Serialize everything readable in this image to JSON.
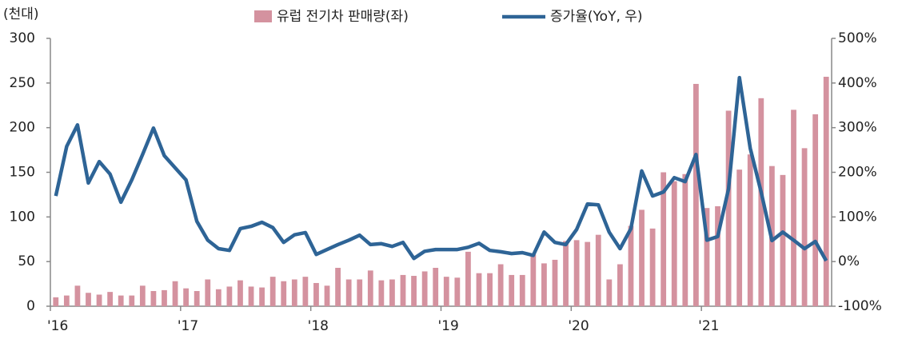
{
  "chart_data": {
    "type": "bar_line",
    "y_label": "(천대)",
    "categories": [
      "'16",
      null,
      null,
      null,
      null,
      null,
      null,
      null,
      null,
      null,
      null,
      null,
      "'17",
      null,
      null,
      null,
      null,
      null,
      null,
      null,
      null,
      null,
      null,
      null,
      "'18",
      null,
      null,
      null,
      null,
      null,
      null,
      null,
      null,
      null,
      null,
      null,
      "'19",
      null,
      null,
      null,
      null,
      null,
      null,
      null,
      null,
      null,
      null,
      null,
      "'20",
      null,
      null,
      null,
      null,
      null,
      null,
      null,
      null,
      null,
      null,
      null,
      "'21",
      null,
      null,
      null,
      null,
      null,
      null,
      null,
      null,
      null,
      null,
      null
    ],
    "series": [
      {
        "name": "유럽 전기차 판매량(좌)",
        "type": "bar",
        "color": "#d4929f",
        "values": [
          10,
          12,
          23,
          15,
          13,
          16,
          12,
          12,
          23,
          17,
          18,
          28,
          20,
          17,
          30,
          19,
          22,
          29,
          22,
          21,
          33,
          28,
          30,
          33,
          26,
          23,
          43,
          30,
          30,
          40,
          29,
          30,
          35,
          34,
          39,
          43,
          33,
          32,
          61,
          37,
          37,
          47,
          35,
          35,
          58,
          48,
          52,
          73,
          74,
          72,
          80,
          30,
          47,
          90,
          108,
          87,
          150,
          140,
          148,
          249,
          110,
          112,
          219,
          153,
          170,
          233,
          157,
          147,
          220,
          177,
          215,
          257
        ]
      },
      {
        "name": "증가율(YoY, 우)",
        "type": "line",
        "axis": "y2",
        "color": "#2e6496",
        "values": [
          147,
          258,
          306,
          176,
          224,
          196,
          133,
          183,
          240,
          299,
          237,
          210,
          183,
          90,
          48,
          29,
          25,
          74,
          79,
          88,
          76,
          43,
          60,
          65,
          16,
          27,
          38,
          48,
          59,
          38,
          40,
          34,
          43,
          7,
          23,
          27,
          27,
          27,
          32,
          41,
          25,
          22,
          18,
          20,
          14,
          66,
          43,
          38,
          72,
          129,
          127,
          66,
          29,
          74,
          203,
          147,
          156,
          188,
          179,
          240,
          48,
          56,
          163,
          412,
          254,
          156,
          47,
          66,
          48,
          29,
          45,
          2
        ]
      }
    ],
    "ylim": [
      0,
      300
    ],
    "yticks": [
      0,
      50,
      100,
      150,
      200,
      250,
      300
    ],
    "y2lim": [
      -100,
      500
    ],
    "y2ticks": [
      {
        "value": -100,
        "label": "-100%"
      },
      {
        "value": 0,
        "label": "0%"
      },
      {
        "value": 100,
        "label": "100%"
      },
      {
        "value": 200,
        "label": "200%"
      },
      {
        "value": 300,
        "label": "300%"
      },
      {
        "value": 400,
        "label": "400%"
      },
      {
        "value": 500,
        "label": "500%"
      }
    ],
    "grid": false,
    "legend": "top"
  }
}
